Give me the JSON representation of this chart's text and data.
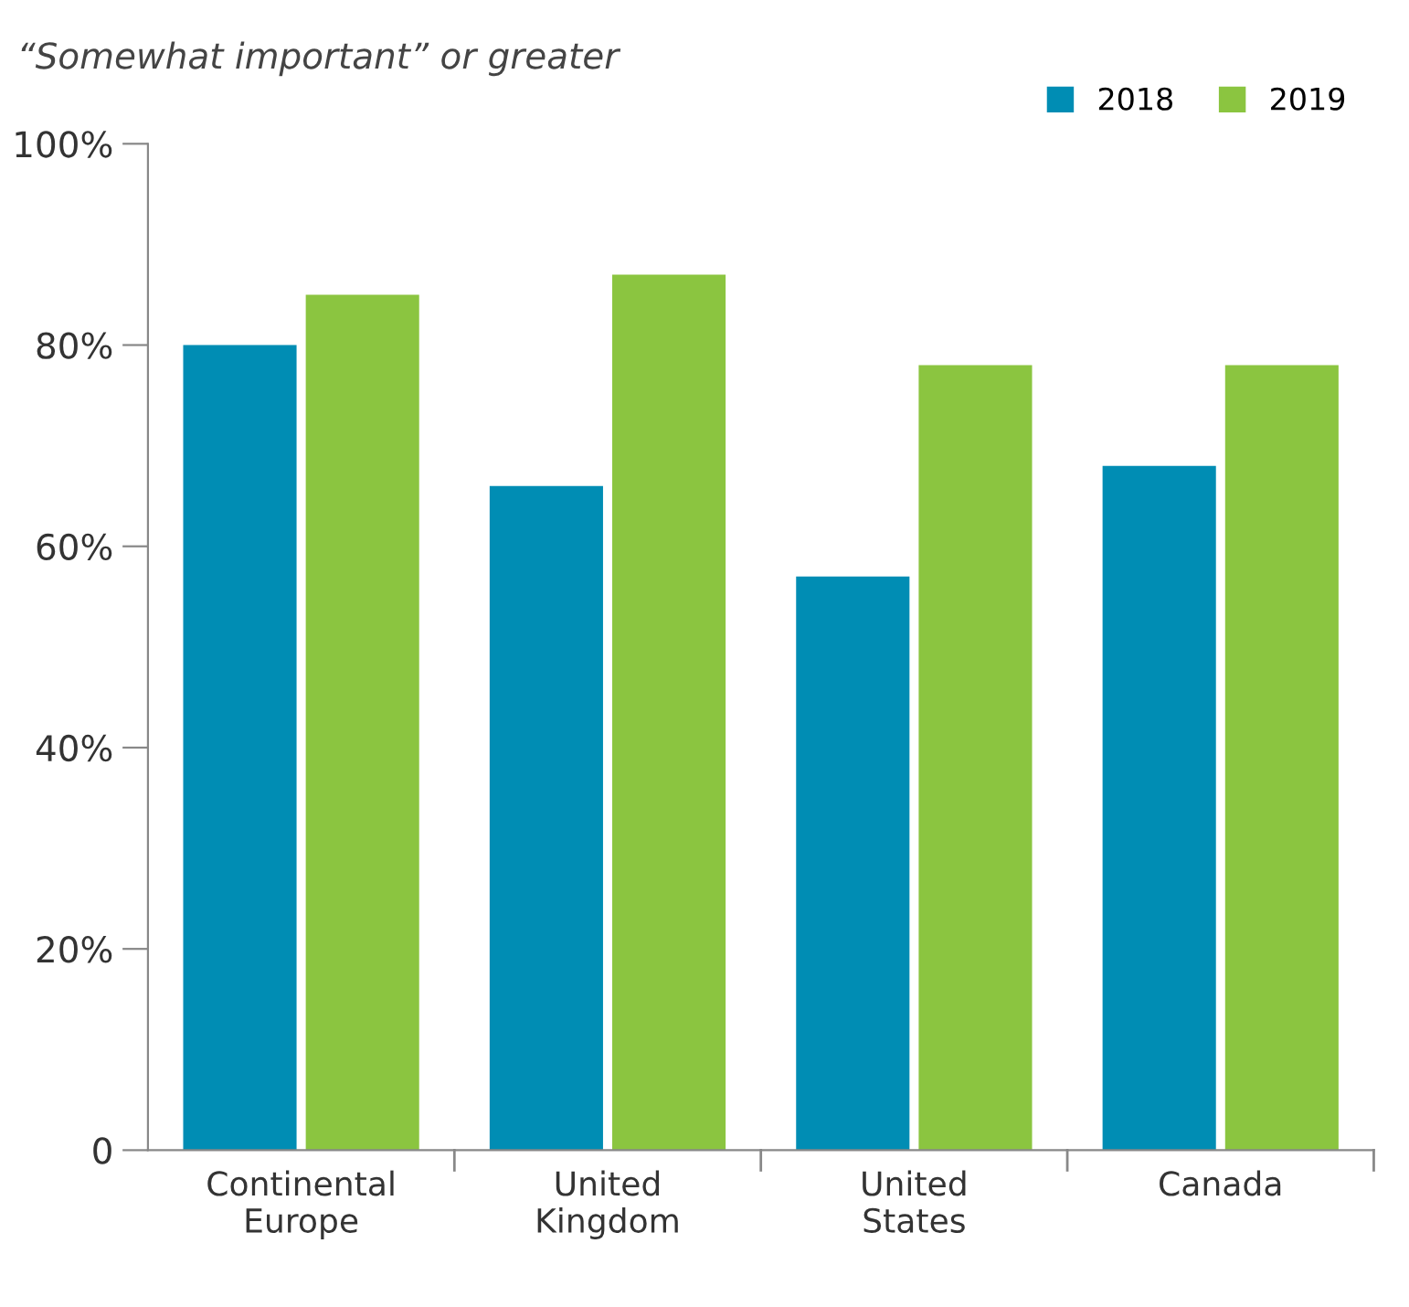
{
  "chart_data": {
    "type": "bar",
    "title": "“Somewhat important” or greater",
    "categories": [
      "Continental\nEurope",
      "United\nKingdom",
      "United\nStates",
      "Canada"
    ],
    "series": [
      {
        "name": "2018",
        "color": "#008db4",
        "values": [
          80,
          66,
          57,
          68
        ]
      },
      {
        "name": "2019",
        "color": "#8bc540",
        "values": [
          85,
          87,
          78,
          78
        ]
      }
    ],
    "ylim": [
      0,
      100
    ],
    "yticks": [
      {
        "value": 0,
        "label": "0"
      },
      {
        "value": 20,
        "label": "20%"
      },
      {
        "value": 40,
        "label": "40%"
      },
      {
        "value": 60,
        "label": "60%"
      },
      {
        "value": 80,
        "label": "80%"
      },
      {
        "value": 100,
        "label": "100%"
      }
    ],
    "grid": false,
    "legend": "top right"
  }
}
